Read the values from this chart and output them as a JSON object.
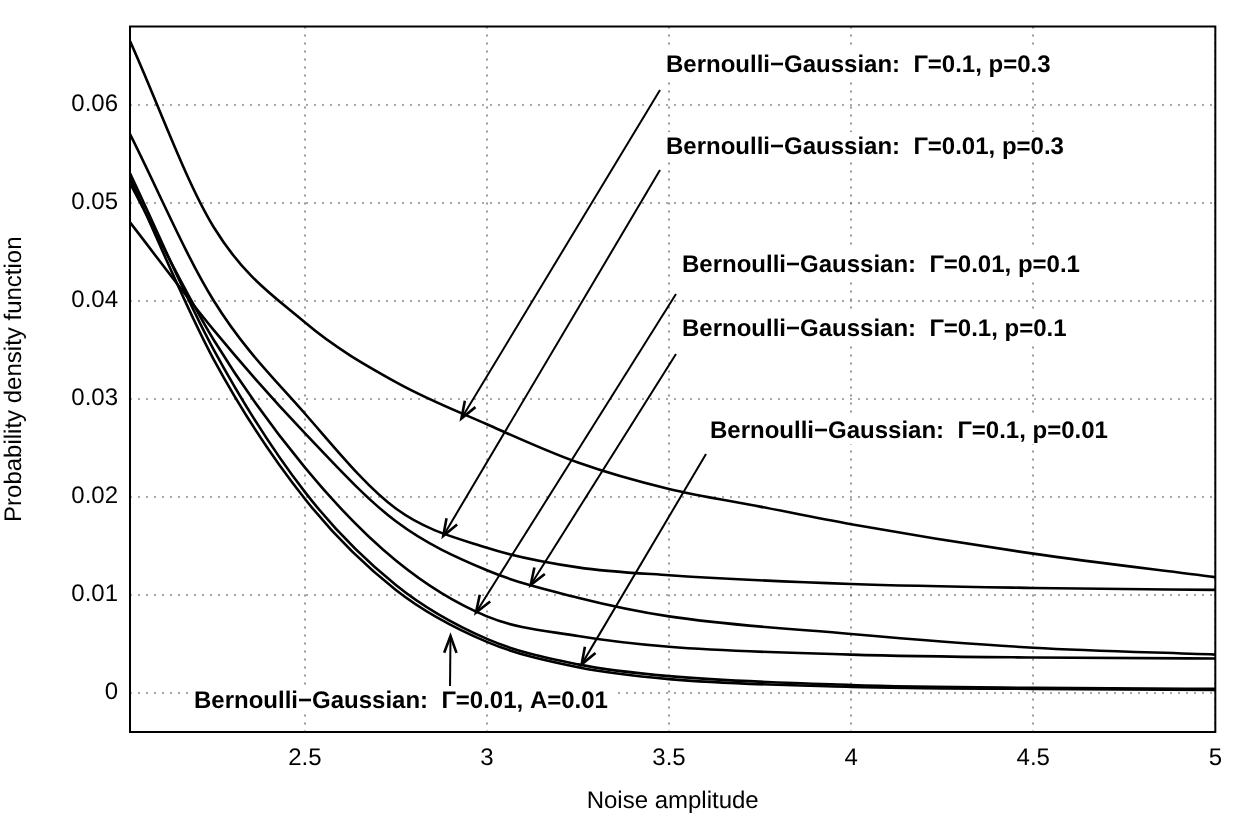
{
  "chart_data": {
    "type": "line",
    "xlabel": "Noise amplitude",
    "ylabel": "Probability density function",
    "xlim": [
      2.02,
      5
    ],
    "ylim": [
      -0.004,
      0.068
    ],
    "xticks": [
      2.5,
      3,
      3.5,
      4,
      4.5,
      5
    ],
    "yticks": [
      0,
      0.01,
      0.02,
      0.03,
      0.04,
      0.05,
      0.06
    ],
    "grid": true,
    "marker": "none",
    "line_style": "solid",
    "series": [
      {
        "color": "#000000",
        "x": [
          2.02,
          2.25,
          2.5,
          2.75,
          3,
          3.25,
          3.5,
          3.75,
          4,
          4.5,
          5
        ],
        "values": [
          0.0665,
          0.0475,
          0.0378,
          0.0317,
          0.0274,
          0.0235,
          0.0208,
          0.019,
          0.0172,
          0.0142,
          0.0118
        ]
      },
      {
        "color": "#000000",
        "x": [
          2.02,
          2.25,
          2.5,
          2.75,
          3,
          3.25,
          3.5,
          4,
          4.5,
          5
        ],
        "values": [
          0.057,
          0.04,
          0.0285,
          0.0188,
          0.0148,
          0.0128,
          0.012,
          0.0111,
          0.0107,
          0.0105
        ]
      },
      {
        "color": "#000000",
        "x": [
          2.02,
          2.25,
          2.5,
          2.75,
          3,
          3.25,
          3.5,
          4,
          4.5,
          5
        ],
        "values": [
          0.048,
          0.037,
          0.0265,
          0.0175,
          0.0125,
          0.0097,
          0.0078,
          0.006,
          0.0046,
          0.0039
        ]
      },
      {
        "color": "#000000",
        "x": [
          2.02,
          2.25,
          2.5,
          2.75,
          3,
          3.25,
          3.5,
          4,
          4.5,
          5
        ],
        "values": [
          0.052,
          0.036,
          0.023,
          0.0135,
          0.0078,
          0.0058,
          0.0047,
          0.0039,
          0.0036,
          0.0035
        ]
      },
      {
        "color": "#000000",
        "x": [
          2.02,
          2.25,
          2.5,
          2.75,
          3,
          3.25,
          3.5,
          4,
          4.5,
          5
        ],
        "values": [
          0.053,
          0.035,
          0.0205,
          0.011,
          0.0055,
          0.0029,
          0.0017,
          0.0008,
          0.0005,
          0.0004
        ]
      },
      {
        "color": "#000000",
        "x": [
          2.02,
          2.25,
          2.5,
          2.75,
          3,
          3.25,
          3.5,
          4,
          4.5,
          5
        ],
        "values": [
          0.0525,
          0.034,
          0.0198,
          0.0105,
          0.0052,
          0.0026,
          0.0014,
          0.0006,
          0.0004,
          0.0003
        ]
      }
    ],
    "annotations": [
      {
        "text": "Bernoulli−Gaussian:  Γ=0.1, p=0.3",
        "x": 2.93,
        "y": 0.028
      },
      {
        "text": "Bernoulli−Gaussian:  Γ=0.01, p=0.3",
        "x": 2.88,
        "y": 0.016
      },
      {
        "text": "Bernoulli−Gaussian:  Γ=0.01, p=0.1",
        "x": 2.97,
        "y": 0.0082
      },
      {
        "text": "Bernoulli−Gaussian:  Γ=0.1, p=0.1",
        "x": 3.12,
        "y": 0.011
      },
      {
        "text": "Bernoulli−Gaussian:  Γ=0.1, p=0.01",
        "x": 3.26,
        "y": 0.0029
      },
      {
        "text": "Bernoulli−Gaussian:  Γ=0.01, A=0.01",
        "x": 2.9,
        "y": 0.0058
      }
    ]
  }
}
